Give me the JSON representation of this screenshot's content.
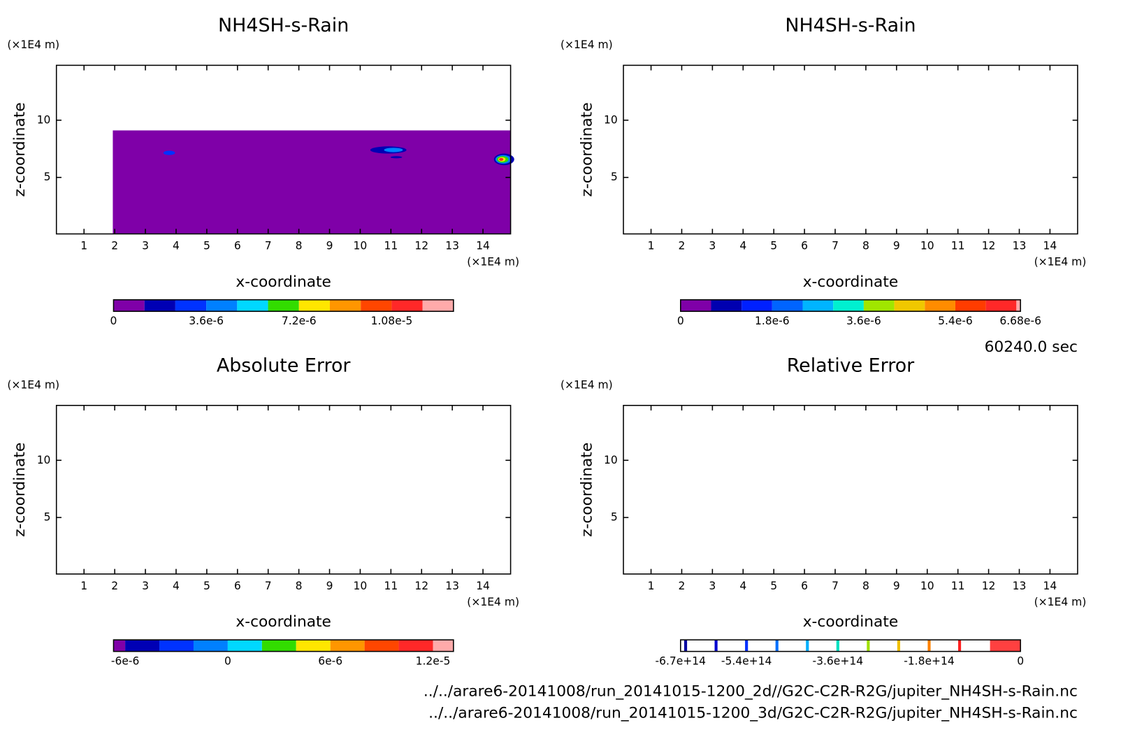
{
  "chart_data": [
    {
      "type": "contour",
      "title": "NH4SH-s-Rain",
      "xlabel": "x-coordinate",
      "ylabel": "z-coordinate",
      "xunit": "(×1E4 m)",
      "yunit": "(×1E4 m)",
      "xlim": [
        0.1,
        14.9
      ],
      "ylim": [
        0.06,
        14.8
      ],
      "xticks": [
        1,
        2,
        3,
        4,
        5,
        6,
        7,
        8,
        9,
        10,
        11,
        12,
        13,
        14
      ],
      "yticks": [
        5,
        10
      ],
      "colorbar": {
        "levels": [
          0,
          1.2e-06,
          2.4e-06,
          3.6e-06,
          4.8e-06,
          6e-06,
          7.2e-06,
          8.4e-06,
          9.6e-06,
          1.08e-05,
          1.2e-05,
          1.32e-05
        ],
        "colors": [
          "#7f00a8",
          "#0000b4",
          "#0032ff",
          "#0080ff",
          "#00d8ff",
          "#32dc00",
          "#ffe600",
          "#ff9600",
          "#ff4600",
          "#ff2828",
          "#ffaaaa"
        ],
        "ticks": [
          0,
          {
            "value": 3.6e-06,
            "label": "3.6e-6"
          },
          {
            "value": 7.2e-06,
            "label": "7.2e-6"
          },
          {
            "value": 1.08e-05,
            "label": "1.08e-5"
          }
        ]
      }
    },
    {
      "type": "contour",
      "title": "NH4SH-s-Rain",
      "xlabel": "x-coordinate",
      "ylabel": "z-coordinate",
      "xunit": "(×1E4 m)",
      "yunit": "(×1E4 m)",
      "xlim": [
        0.1,
        14.9
      ],
      "ylim": [
        0.06,
        14.8
      ],
      "xticks": [
        1,
        2,
        3,
        4,
        5,
        6,
        7,
        8,
        9,
        10,
        11,
        12,
        13,
        14
      ],
      "yticks": [
        5,
        10
      ],
      "colorbar": {
        "levels": [
          0,
          6e-07,
          1.2e-06,
          1.8e-06,
          2.4e-06,
          3e-06,
          3.6e-06,
          4.2e-06,
          4.8e-06,
          5.4e-06,
          6e-06,
          6.6e-06,
          6.68e-06
        ],
        "colors": [
          "#7f00a8",
          "#0000b0",
          "#0020ff",
          "#0064ff",
          "#00b4ff",
          "#00f0d0",
          "#a0e600",
          "#f0c800",
          "#ff8c00",
          "#ff3c00",
          "#ff2828",
          "#ffaaaa"
        ],
        "ticks": [
          0,
          {
            "value": 1.8e-06,
            "label": "1.8e-6"
          },
          {
            "value": 3.6e-06,
            "label": "3.6e-6"
          },
          {
            "value": 5.4e-06,
            "label": "5.4e-6"
          },
          {
            "value": 6.68e-06,
            "label": "6.68e-6"
          }
        ]
      }
    },
    {
      "type": "contour",
      "title": "Absolute Error",
      "xlabel": "x-coordinate",
      "ylabel": "z-coordinate",
      "xunit": "(×1E4 m)",
      "yunit": "(×1E4 m)",
      "xlim": [
        0.1,
        14.9
      ],
      "ylim": [
        0.06,
        14.8
      ],
      "xticks": [
        1,
        2,
        3,
        4,
        5,
        6,
        7,
        8,
        9,
        10,
        11,
        12,
        13,
        14
      ],
      "yticks": [
        5,
        10
      ],
      "colorbar": {
        "levels": [
          -6.68e-06,
          -6e-06,
          -4e-06,
          -2e-06,
          0,
          2e-06,
          4e-06,
          6e-06,
          8e-06,
          1e-05,
          1.2e-05,
          1.32e-05
        ],
        "colors": [
          "#7f00a8",
          "#0000b4",
          "#0032ff",
          "#0080ff",
          "#00d8ff",
          "#32dc00",
          "#ffe600",
          "#ff9600",
          "#ff4600",
          "#ff2828",
          "#ffaaaa"
        ],
        "ticks": [
          {
            "value": -6e-06,
            "label": "-6e-6"
          },
          0,
          {
            "value": 6e-06,
            "label": "6e-6"
          },
          {
            "value": 1.2e-05,
            "label": "1.2e-5"
          }
        ]
      }
    },
    {
      "type": "contour",
      "title": "Relative Error",
      "xlabel": "x-coordinate",
      "ylabel": "z-coordinate",
      "xunit": "(×1E4 m)",
      "yunit": "(×1E4 m)",
      "xlim": [
        0.1,
        14.9
      ],
      "ylim": [
        0.06,
        14.8
      ],
      "xticks": [
        1,
        2,
        3,
        4,
        5,
        6,
        7,
        8,
        9,
        10,
        11,
        12,
        13,
        14
      ],
      "yticks": [
        5,
        10
      ],
      "colorbar": {
        "levels": [
          -670000000000000.0,
          -660000000000000.0,
          -600000000000000.0,
          -540000000000000.0,
          -480000000000000.0,
          -420000000000000.0,
          -360000000000000.0,
          -300000000000000.0,
          -240000000000000.0,
          -180000000000000.0,
          -120000000000000.0,
          -60000000000000.0,
          0
        ],
        "colors": [
          "#ffffff",
          "#ffffff",
          "#ffffff",
          "#ffffff",
          "#ffffff",
          "#ffffff",
          "#ffffff",
          "#ffffff",
          "#ffffff",
          "#ffffff",
          "#ffffff",
          "#ff4040"
        ],
        "line_colors": [
          null,
          "#0000a0",
          "#0000d0",
          "#0030ff",
          "#0070ff",
          "#00b0ff",
          "#00e0c0",
          "#a0e000",
          "#f0c000",
          "#ff8000",
          "#ff2020",
          null
        ],
        "ticks": [
          {
            "value": -670000000000000.0,
            "label": "-6.7e+14"
          },
          {
            "value": -540000000000000.0,
            "label": "-5.4e+14"
          },
          {
            "value": -360000000000000.0,
            "label": "-3.6e+14"
          },
          {
            "value": -180000000000000.0,
            "label": "-1.8e+14"
          },
          0
        ]
      }
    }
  ],
  "footer": {
    "time": "60240.0 sec",
    "files": [
      "../../arare6-20141008/run_20141015-1200_2d//G2C-C2R-R2G/jupiter_NH4SH-s-Rain.nc",
      "../../arare6-20141008/run_20141015-1200_3d/G2C-C2R-R2G/jupiter_NH4SH-s-Rain.nc"
    ]
  }
}
